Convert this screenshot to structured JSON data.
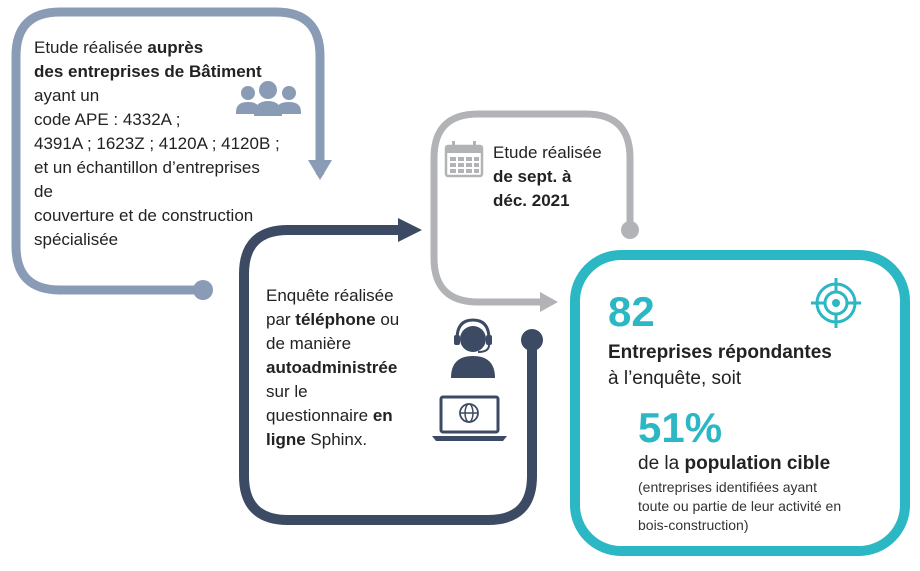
{
  "colors": {
    "box1": "#8a9bb5",
    "box2": "#3d4a63",
    "box3": "#b1b3b6",
    "box4": "#2bb7c4",
    "text": "#222222"
  },
  "box1": {
    "line1_a": "Etude réalisée ",
    "line1_b": "auprès",
    "line2": "des entreprises de Bâtiment",
    "line3": "ayant un",
    "line4": "code APE : 4332A ;",
    "line5": "4391A ; 1623Z ; 4120A ; 4120B ;",
    "line6": "et un échantillon d’entreprises",
    "line7": "de",
    "line8": "couverture et de construction",
    "line9": "spécialisée",
    "icon": "people-group-icon"
  },
  "box2": {
    "line1": "Enquête réalisée",
    "line2_a": "par ",
    "line2_b": "téléphone",
    "line2_c": " ou",
    "line3": "de manière",
    "line4": "autoadministrée",
    "line5": "sur le",
    "line6_a": "questionnaire ",
    "line6_b": "en",
    "line7_a": "ligne",
    "line7_b": " Sphinx.",
    "icon_top": "headset-operator-icon",
    "icon_bottom": "laptop-globe-icon"
  },
  "box3": {
    "line1": "Etude réalisée",
    "line2": "de sept. à",
    "line3": "déc. 2021",
    "icon": "calendar-icon"
  },
  "box4": {
    "stat1": "82",
    "label1_bold": "Entreprises répondantes",
    "label1_rest": "à l’enquête, soit",
    "stat2": "51%",
    "label2_a": "de la ",
    "label2_b": "population cible",
    "note1": "(entreprises identifiées ayant",
    "note2": "toute ou partie de leur activité en",
    "note3": "bois-construction)",
    "icon": "target-icon"
  }
}
